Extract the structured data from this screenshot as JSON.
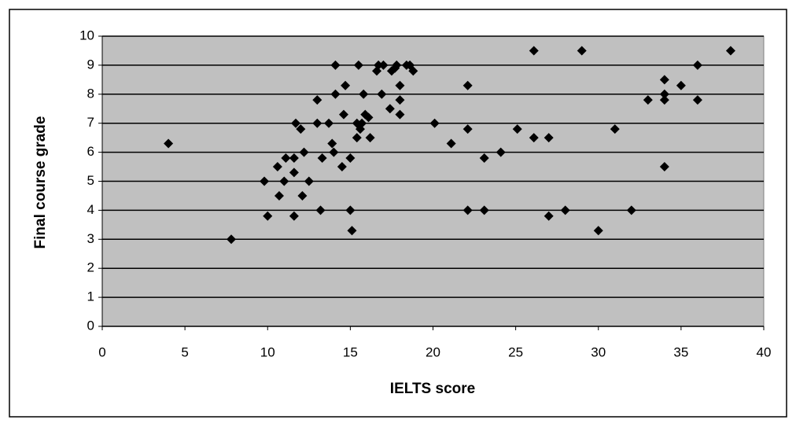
{
  "chart_data": {
    "type": "scatter",
    "x_label": "IELTS score",
    "y_label": "Final course grade",
    "color": "#000000",
    "background": "#c0c0c0",
    "grid": true,
    "xlim": [
      0,
      40
    ],
    "xticks": [
      0,
      5,
      10,
      15,
      20,
      25,
      30,
      35,
      40
    ],
    "ylim": [
      0,
      10
    ],
    "yticks": [
      0,
      1,
      2,
      3,
      4,
      5,
      6,
      7,
      8,
      9,
      10
    ],
    "x": [
      4,
      7.8,
      9.8,
      10,
      10.6,
      10.7,
      11,
      11.1,
      11.6,
      11.6,
      11.6,
      11.7,
      12,
      12.1,
      12.2,
      12.5,
      13,
      13,
      13.2,
      13.3,
      13.7,
      13.9,
      14,
      14.1,
      14.1,
      14.5,
      14.6,
      14.7,
      15,
      15,
      15.1,
      15.4,
      15.4,
      15.5,
      15.6,
      15.7,
      15.8,
      15.9,
      16.1,
      16.2,
      16.6,
      16.7,
      17,
      16.9,
      17.4,
      17.5,
      17.7,
      17.8,
      18,
      18,
      18,
      18.4,
      18.6,
      18.8,
      20.1,
      21.1,
      22.1,
      22.1,
      22.1,
      23.1,
      23.1,
      24.1,
      25.1,
      26.1,
      26.1,
      27,
      27,
      28,
      29,
      30,
      31,
      32,
      33,
      34,
      34,
      34,
      34,
      35,
      36,
      36,
      38
    ],
    "y": [
      6.3,
      3.0,
      5.0,
      3.8,
      5.5,
      4.5,
      5.0,
      5.8,
      5.8,
      5.3,
      3.8,
      7.0,
      6.8,
      4.5,
      6.0,
      5.0,
      7.8,
      7.0,
      4.0,
      5.8,
      7.0,
      6.3,
      6.0,
      9.0,
      8.0,
      5.5,
      7.3,
      8.3,
      5.8,
      4.0,
      3.3,
      6.5,
      7.0,
      9.0,
      6.8,
      7.0,
      8.0,
      7.3,
      7.2,
      6.5,
      8.8,
      9.0,
      9.0,
      8.0,
      7.5,
      8.8,
      8.9,
      9.0,
      7.8,
      8.3,
      7.3,
      9.0,
      9.0,
      8.8,
      7.0,
      6.3,
      8.3,
      6.8,
      4.0,
      5.8,
      4.0,
      6.0,
      6.8,
      9.5,
      6.5,
      6.5,
      3.8,
      4.0,
      9.5,
      3.3,
      6.8,
      4.0,
      7.8,
      8.5,
      8.0,
      7.8,
      5.5,
      8.3,
      9.0,
      7.8,
      9.5
    ]
  }
}
